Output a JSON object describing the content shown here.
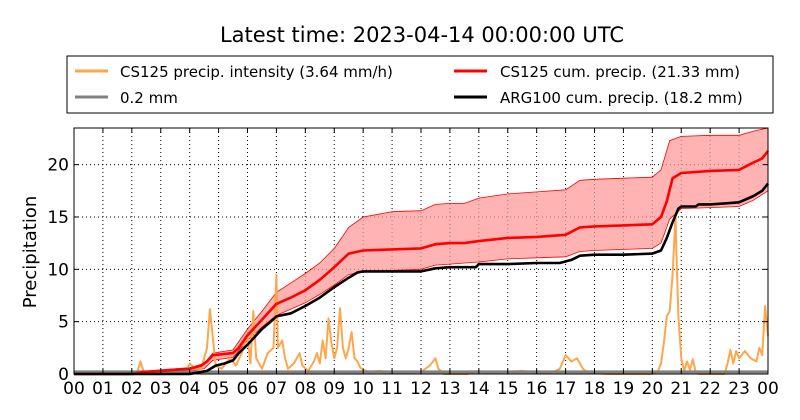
{
  "chart_data": {
    "type": "line",
    "title": "Latest time: 2023-04-14 00:00:00 UTC",
    "ylabel": "Precipitation",
    "xlabel": "",
    "x_tick_labels": [
      "00",
      "01",
      "02",
      "03",
      "04",
      "05",
      "06",
      "07",
      "08",
      "09",
      "10",
      "11",
      "12",
      "13",
      "14",
      "15",
      "16",
      "17",
      "18",
      "19",
      "20",
      "21",
      "22",
      "23",
      "00"
    ],
    "y_ticks": [
      0,
      5,
      10,
      15,
      20
    ],
    "xlim": [
      0,
      24
    ],
    "ylim": [
      0,
      23.5
    ],
    "grid": true,
    "legend_position": "top",
    "legend": [
      {
        "label": "CS125 precip. intensity (3.64 mm/h)",
        "color": "#ffa64d"
      },
      {
        "label": "0.2 mm",
        "color": "#808080"
      },
      {
        "label": "CS125 cum. precip. (21.33 mm)",
        "color": "#ff0000"
      },
      {
        "label": "ARG100 cum. precip. (18.2 mm)",
        "color": "#000000"
      }
    ],
    "series": [
      {
        "name": "CS125 precip. intensity (3.64 mm/h)",
        "color": "#ffa64d",
        "points": [
          [
            0,
            0
          ],
          [
            2.0,
            0
          ],
          [
            2.2,
            0.3
          ],
          [
            2.3,
            1.2
          ],
          [
            2.4,
            0.3
          ],
          [
            2.6,
            0
          ],
          [
            3.0,
            0.2
          ],
          [
            3.5,
            0.3
          ],
          [
            3.9,
            0.3
          ],
          [
            4.0,
            1.0
          ],
          [
            4.2,
            0.5
          ],
          [
            4.4,
            0.5
          ],
          [
            4.6,
            2.5
          ],
          [
            4.7,
            6.2
          ],
          [
            4.8,
            3.5
          ],
          [
            4.9,
            0.8
          ],
          [
            5.1,
            0.5
          ],
          [
            5.4,
            1.5
          ],
          [
            5.6,
            0.8
          ],
          [
            5.8,
            2.0
          ],
          [
            6.0,
            3.8
          ],
          [
            6.1,
            1.0
          ],
          [
            6.2,
            6.0
          ],
          [
            6.3,
            1.5
          ],
          [
            6.5,
            0.5
          ],
          [
            6.7,
            2.0
          ],
          [
            6.9,
            2.5
          ],
          [
            7.0,
            9.5
          ],
          [
            7.05,
            2.5
          ],
          [
            7.2,
            3.2
          ],
          [
            7.3,
            1.5
          ],
          [
            7.4,
            0.5
          ],
          [
            7.6,
            1.0
          ],
          [
            7.8,
            2.0
          ],
          [
            7.9,
            0.8
          ],
          [
            8.1,
            0.3
          ],
          [
            8.3,
            1.2
          ],
          [
            8.4,
            2.0
          ],
          [
            8.5,
            1.0
          ],
          [
            8.6,
            3.2
          ],
          [
            8.7,
            1.5
          ],
          [
            8.8,
            5.3
          ],
          [
            8.9,
            3.0
          ],
          [
            9.0,
            1.5
          ],
          [
            9.1,
            2.5
          ],
          [
            9.2,
            6.3
          ],
          [
            9.3,
            2.5
          ],
          [
            9.4,
            1.5
          ],
          [
            9.5,
            2.5
          ],
          [
            9.6,
            4.0
          ],
          [
            9.7,
            1.5
          ],
          [
            9.8,
            1.2
          ],
          [
            9.9,
            0.6
          ],
          [
            10.0,
            0.4
          ],
          [
            10.2,
            0.2
          ],
          [
            10.6,
            0.3
          ],
          [
            11.0,
            0.1
          ],
          [
            12.0,
            0.2
          ],
          [
            12.3,
            0.8
          ],
          [
            12.5,
            1.5
          ],
          [
            12.6,
            0.5
          ],
          [
            12.8,
            0
          ],
          [
            13.6,
            0
          ],
          [
            14.0,
            0.3
          ],
          [
            14.2,
            0.1
          ],
          [
            15.5,
            0.3
          ],
          [
            15.7,
            0.2
          ],
          [
            16.0,
            0.1
          ],
          [
            16.5,
            0.1
          ],
          [
            16.8,
            0.5
          ],
          [
            17.0,
            1.8
          ],
          [
            17.2,
            1.2
          ],
          [
            17.4,
            1.5
          ],
          [
            17.6,
            0.5
          ],
          [
            17.8,
            0.1
          ],
          [
            18.5,
            0
          ],
          [
            20.0,
            0
          ],
          [
            20.2,
            0.3
          ],
          [
            20.3,
            1.0
          ],
          [
            20.4,
            3.0
          ],
          [
            20.5,
            5.5
          ],
          [
            20.6,
            6.0
          ],
          [
            20.7,
            9.5
          ],
          [
            20.8,
            15.2
          ],
          [
            20.85,
            10.0
          ],
          [
            20.9,
            5.5
          ],
          [
            21.0,
            1.5
          ],
          [
            21.1,
            0.3
          ],
          [
            21.2,
            1.2
          ],
          [
            21.3,
            0.4
          ],
          [
            21.4,
            1.4
          ],
          [
            21.5,
            0.2
          ],
          [
            21.6,
            0
          ],
          [
            22.5,
            0
          ],
          [
            22.6,
            1.0
          ],
          [
            22.7,
            2.3
          ],
          [
            22.8,
            1.0
          ],
          [
            22.9,
            2.2
          ],
          [
            23.0,
            1.5
          ],
          [
            23.2,
            2.2
          ],
          [
            23.4,
            1.5
          ],
          [
            23.6,
            1.2
          ],
          [
            23.7,
            2.5
          ],
          [
            23.8,
            1.8
          ],
          [
            23.9,
            6.5
          ],
          [
            24.0,
            3.6
          ]
        ]
      },
      {
        "name": "0.2 mm",
        "color": "#808080",
        "points": [
          [
            0,
            0.2
          ],
          [
            24,
            0.2
          ]
        ]
      },
      {
        "name": "CS125 cum. precip. (21.33 mm)",
        "color": "#ff0000",
        "band_upper": [
          [
            0,
            0.1
          ],
          [
            2.0,
            0.1
          ],
          [
            3.0,
            0.4
          ],
          [
            4.0,
            0.6
          ],
          [
            4.5,
            1.0
          ],
          [
            4.8,
            2.0
          ],
          [
            5.5,
            2.3
          ],
          [
            6.0,
            4.3
          ],
          [
            6.5,
            6.0
          ],
          [
            7.0,
            7.8
          ],
          [
            7.5,
            8.7
          ],
          [
            8.0,
            9.6
          ],
          [
            8.5,
            10.6
          ],
          [
            9.0,
            12.0
          ],
          [
            9.5,
            14.0
          ],
          [
            10.0,
            15.0
          ],
          [
            11.0,
            15.5
          ],
          [
            12.0,
            15.6
          ],
          [
            12.5,
            16.2
          ],
          [
            13.0,
            16.3
          ],
          [
            13.5,
            16.3
          ],
          [
            14.0,
            16.8
          ],
          [
            15.0,
            17.2
          ],
          [
            16.0,
            17.4
          ],
          [
            17.0,
            17.6
          ],
          [
            17.5,
            18.5
          ],
          [
            18.0,
            18.6
          ],
          [
            19.0,
            18.7
          ],
          [
            20.0,
            18.8
          ],
          [
            20.3,
            19.5
          ],
          [
            20.6,
            22.3
          ],
          [
            21.0,
            22.7
          ],
          [
            22.0,
            22.8
          ],
          [
            23.0,
            22.8
          ],
          [
            23.5,
            23.2
          ],
          [
            24.0,
            23.5
          ]
        ],
        "band_lower": [
          [
            0,
            0
          ],
          [
            2.0,
            0
          ],
          [
            3.0,
            0.2
          ],
          [
            4.0,
            0.3
          ],
          [
            4.5,
            0.5
          ],
          [
            4.8,
            1.3
          ],
          [
            5.5,
            1.6
          ],
          [
            6.0,
            3.2
          ],
          [
            6.5,
            4.5
          ],
          [
            7.0,
            5.6
          ],
          [
            7.5,
            6.2
          ],
          [
            8.0,
            6.8
          ],
          [
            8.5,
            7.6
          ],
          [
            9.0,
            8.5
          ],
          [
            9.5,
            9.5
          ],
          [
            10.0,
            9.8
          ],
          [
            11.0,
            9.9
          ],
          [
            12.0,
            10.0
          ],
          [
            12.5,
            10.4
          ],
          [
            13.0,
            10.5
          ],
          [
            14.0,
            10.7
          ],
          [
            15.0,
            11.0
          ],
          [
            16.0,
            11.1
          ],
          [
            17.0,
            11.2
          ],
          [
            17.5,
            11.7
          ],
          [
            18.0,
            11.8
          ],
          [
            19.0,
            11.9
          ],
          [
            20.0,
            12.0
          ],
          [
            20.3,
            12.5
          ],
          [
            20.6,
            14.8
          ],
          [
            21.0,
            15.8
          ],
          [
            22.0,
            15.9
          ],
          [
            23.0,
            16.0
          ],
          [
            23.5,
            16.6
          ],
          [
            24.0,
            17.5
          ]
        ],
        "points": [
          [
            0,
            0
          ],
          [
            2.0,
            0
          ],
          [
            2.4,
            0.2
          ],
          [
            3.0,
            0.3
          ],
          [
            3.5,
            0.4
          ],
          [
            4.0,
            0.5
          ],
          [
            4.4,
            0.8
          ],
          [
            4.6,
            1.2
          ],
          [
            4.8,
            1.8
          ],
          [
            5.5,
            2.0
          ],
          [
            5.7,
            2.5
          ],
          [
            6.0,
            3.7
          ],
          [
            6.5,
            5.2
          ],
          [
            7.0,
            6.7
          ],
          [
            7.5,
            7.3
          ],
          [
            8.0,
            8.0
          ],
          [
            8.5,
            9.0
          ],
          [
            9.0,
            10.2
          ],
          [
            9.5,
            11.5
          ],
          [
            10.0,
            11.8
          ],
          [
            11.0,
            11.9
          ],
          [
            12.0,
            12.0
          ],
          [
            12.5,
            12.4
          ],
          [
            13.0,
            12.5
          ],
          [
            13.5,
            12.5
          ],
          [
            14.0,
            12.7
          ],
          [
            15.0,
            13.0
          ],
          [
            16.0,
            13.1
          ],
          [
            17.0,
            13.3
          ],
          [
            17.5,
            14.0
          ],
          [
            18.0,
            14.1
          ],
          [
            19.0,
            14.2
          ],
          [
            20.0,
            14.3
          ],
          [
            20.3,
            15.0
          ],
          [
            20.5,
            16.5
          ],
          [
            20.7,
            18.7
          ],
          [
            21.0,
            19.2
          ],
          [
            22.0,
            19.4
          ],
          [
            23.0,
            19.5
          ],
          [
            23.5,
            20.2
          ],
          [
            23.8,
            20.6
          ],
          [
            24.0,
            21.3
          ]
        ]
      },
      {
        "name": "ARG100 cum. precip. (18.2 mm)",
        "color": "#000000",
        "points": [
          [
            0,
            0
          ],
          [
            4.0,
            0
          ],
          [
            4.2,
            0.1
          ],
          [
            4.6,
            0.3
          ],
          [
            4.9,
            0.8
          ],
          [
            5.2,
            1.0
          ],
          [
            5.5,
            1.3
          ],
          [
            5.7,
            2.0
          ],
          [
            6.0,
            2.8
          ],
          [
            6.5,
            4.3
          ],
          [
            6.8,
            5.0
          ],
          [
            7.0,
            5.5
          ],
          [
            7.5,
            5.8
          ],
          [
            8.0,
            6.5
          ],
          [
            8.5,
            7.3
          ],
          [
            9.0,
            8.3
          ],
          [
            9.5,
            9.2
          ],
          [
            9.8,
            9.7
          ],
          [
            10.0,
            9.8
          ],
          [
            12.0,
            9.8
          ],
          [
            12.5,
            10.1
          ],
          [
            13.0,
            10.2
          ],
          [
            13.9,
            10.2
          ],
          [
            14.0,
            10.5
          ],
          [
            15.0,
            10.5
          ],
          [
            16.0,
            10.6
          ],
          [
            16.8,
            10.6
          ],
          [
            17.2,
            10.9
          ],
          [
            17.5,
            11.3
          ],
          [
            18.0,
            11.4
          ],
          [
            19.0,
            11.4
          ],
          [
            20.0,
            11.5
          ],
          [
            20.3,
            11.8
          ],
          [
            20.5,
            13.0
          ],
          [
            20.7,
            14.5
          ],
          [
            20.9,
            15.8
          ],
          [
            21.0,
            16.0
          ],
          [
            21.5,
            16.0
          ],
          [
            21.6,
            16.2
          ],
          [
            22.0,
            16.2
          ],
          [
            22.5,
            16.3
          ],
          [
            23.0,
            16.4
          ],
          [
            23.5,
            17.0
          ],
          [
            23.8,
            17.5
          ],
          [
            24.0,
            18.2
          ]
        ]
      }
    ]
  }
}
